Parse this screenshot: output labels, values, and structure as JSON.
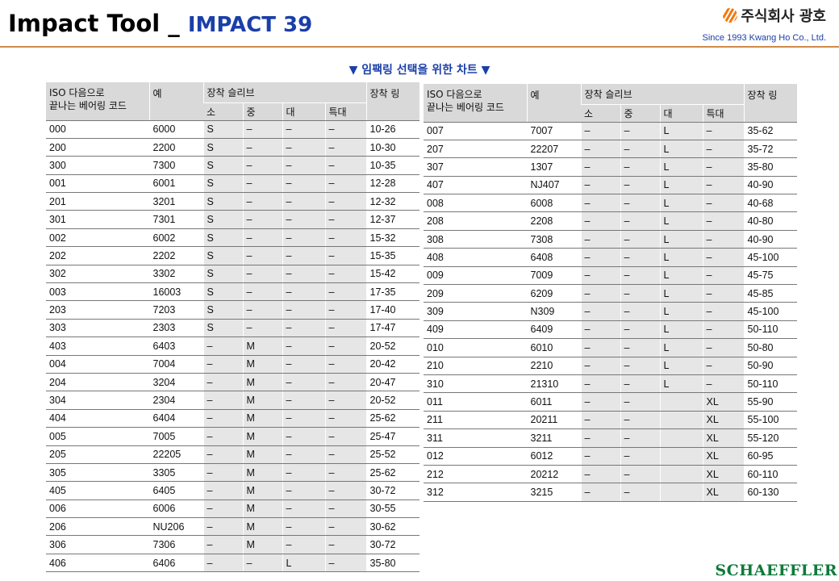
{
  "header": {
    "title": "Impact Tool _",
    "subtitle": "IMPACT 39"
  },
  "brand": {
    "company": "주식회사 광호",
    "since": "Since 1993 Kwang Ho Co., Ltd.",
    "logo_icon": "orange-striped-circle-logo"
  },
  "caption": "▼ 임팩링 선택을 위한 차트 ▼",
  "table_headers": {
    "iso": [
      "ISO 다음으로",
      "끝나는 베어링 코드"
    ],
    "example": "예",
    "sleeve": "장착 슬리브",
    "small": "소",
    "medium": "중",
    "large": "대",
    "xlarge": "특대",
    "ring": "장착 링"
  },
  "left_table": [
    {
      "iso": "000",
      "ex": "6000",
      "s": "S",
      "m": "–",
      "l": "–",
      "xl": "–",
      "ring": "10-26"
    },
    {
      "iso": "200",
      "ex": "2200",
      "s": "S",
      "m": "–",
      "l": "–",
      "xl": "–",
      "ring": "10-30"
    },
    {
      "iso": "300",
      "ex": "7300",
      "s": "S",
      "m": "–",
      "l": "–",
      "xl": "–",
      "ring": "10-35"
    },
    {
      "iso": "001",
      "ex": "6001",
      "s": "S",
      "m": "–",
      "l": "–",
      "xl": "–",
      "ring": "12-28"
    },
    {
      "iso": "201",
      "ex": "3201",
      "s": "S",
      "m": "–",
      "l": "–",
      "xl": "–",
      "ring": "12-32"
    },
    {
      "iso": "301",
      "ex": "7301",
      "s": "S",
      "m": "–",
      "l": "–",
      "xl": "–",
      "ring": "12-37"
    },
    {
      "iso": "002",
      "ex": "6002",
      "s": "S",
      "m": "–",
      "l": "–",
      "xl": "–",
      "ring": "15-32"
    },
    {
      "iso": "202",
      "ex": "2202",
      "s": "S",
      "m": "–",
      "l": "–",
      "xl": "–",
      "ring": "15-35"
    },
    {
      "iso": "302",
      "ex": "3302",
      "s": "S",
      "m": "–",
      "l": "–",
      "xl": "–",
      "ring": "15-42"
    },
    {
      "iso": "003",
      "ex": "16003",
      "s": "S",
      "m": "–",
      "l": "–",
      "xl": "–",
      "ring": "17-35"
    },
    {
      "iso": "203",
      "ex": "7203",
      "s": "S",
      "m": "–",
      "l": "–",
      "xl": "–",
      "ring": "17-40"
    },
    {
      "iso": "303",
      "ex": "2303",
      "s": "S",
      "m": "–",
      "l": "–",
      "xl": "–",
      "ring": "17-47"
    },
    {
      "iso": "403",
      "ex": "6403",
      "s": "–",
      "m": "M",
      "l": "–",
      "xl": "–",
      "ring": "20-52"
    },
    {
      "iso": "004",
      "ex": "7004",
      "s": "–",
      "m": "M",
      "l": "–",
      "xl": "–",
      "ring": "20-42"
    },
    {
      "iso": "204",
      "ex": "3204",
      "s": "–",
      "m": "M",
      "l": "–",
      "xl": "–",
      "ring": "20-47"
    },
    {
      "iso": "304",
      "ex": "2304",
      "s": "–",
      "m": "M",
      "l": "–",
      "xl": "–",
      "ring": "20-52"
    },
    {
      "iso": "404",
      "ex": "6404",
      "s": "–",
      "m": "M",
      "l": "–",
      "xl": "–",
      "ring": "25-62"
    },
    {
      "iso": "005",
      "ex": "7005",
      "s": "–",
      "m": "M",
      "l": "–",
      "xl": "–",
      "ring": "25-47"
    },
    {
      "iso": "205",
      "ex": "22205",
      "s": "–",
      "m": "M",
      "l": "–",
      "xl": "–",
      "ring": "25-52"
    },
    {
      "iso": "305",
      "ex": "3305",
      "s": "–",
      "m": "M",
      "l": "–",
      "xl": "–",
      "ring": "25-62"
    },
    {
      "iso": "405",
      "ex": "6405",
      "s": "–",
      "m": "M",
      "l": "–",
      "xl": "–",
      "ring": "30-72"
    },
    {
      "iso": "006",
      "ex": "6006",
      "s": "–",
      "m": "M",
      "l": "–",
      "xl": "–",
      "ring": "30-55"
    },
    {
      "iso": "206",
      "ex": "NU206",
      "s": "–",
      "m": "M",
      "l": "–",
      "xl": "–",
      "ring": "30-62"
    },
    {
      "iso": "306",
      "ex": "7306",
      "s": "–",
      "m": "M",
      "l": "–",
      "xl": "–",
      "ring": "30-72"
    },
    {
      "iso": "406",
      "ex": "6406",
      "s": "–",
      "m": "–",
      "l": "L",
      "xl": "–",
      "ring": "35-80"
    }
  ],
  "right_table": [
    {
      "iso": "007",
      "ex": "7007",
      "s": "–",
      "m": "–",
      "l": "L",
      "xl": "–",
      "ring": "35-62"
    },
    {
      "iso": "207",
      "ex": "22207",
      "s": "–",
      "m": "–",
      "l": "L",
      "xl": "–",
      "ring": "35-72"
    },
    {
      "iso": "307",
      "ex": "1307",
      "s": "–",
      "m": "–",
      "l": "L",
      "xl": "–",
      "ring": "35-80"
    },
    {
      "iso": "407",
      "ex": "NJ407",
      "s": "–",
      "m": "–",
      "l": "L",
      "xl": "–",
      "ring": "40-90"
    },
    {
      "iso": "008",
      "ex": "6008",
      "s": "–",
      "m": "–",
      "l": "L",
      "xl": "–",
      "ring": "40-68"
    },
    {
      "iso": "208",
      "ex": "2208",
      "s": "–",
      "m": "–",
      "l": "L",
      "xl": "–",
      "ring": "40-80"
    },
    {
      "iso": "308",
      "ex": "7308",
      "s": "–",
      "m": "–",
      "l": "L",
      "xl": "–",
      "ring": "40-90"
    },
    {
      "iso": "408",
      "ex": "6408",
      "s": "–",
      "m": "–",
      "l": "L",
      "xl": "–",
      "ring": "45-100"
    },
    {
      "iso": "009",
      "ex": "7009",
      "s": "–",
      "m": "–",
      "l": "L",
      "xl": "–",
      "ring": "45-75"
    },
    {
      "iso": "209",
      "ex": "6209",
      "s": "–",
      "m": "–",
      "l": "L",
      "xl": "–",
      "ring": "45-85"
    },
    {
      "iso": "309",
      "ex": "N309",
      "s": "–",
      "m": "–",
      "l": "L",
      "xl": "–",
      "ring": "45-100"
    },
    {
      "iso": "409",
      "ex": "6409",
      "s": "–",
      "m": "–",
      "l": "L",
      "xl": "–",
      "ring": "50-110"
    },
    {
      "iso": "010",
      "ex": "6010",
      "s": "–",
      "m": "–",
      "l": "L",
      "xl": "–",
      "ring": "50-80"
    },
    {
      "iso": "210",
      "ex": "2210",
      "s": "–",
      "m": "–",
      "l": "L",
      "xl": "–",
      "ring": "50-90"
    },
    {
      "iso": "310",
      "ex": "21310",
      "s": "–",
      "m": "–",
      "l": "L",
      "xl": "–",
      "ring": "50-110"
    },
    {
      "iso": "011",
      "ex": "6011",
      "s": "–",
      "m": "–",
      "l": "",
      "xl": "XL",
      "ring": "55-90"
    },
    {
      "iso": "211",
      "ex": "20211",
      "s": "–",
      "m": "–",
      "l": "",
      "xl": "XL",
      "ring": "55-100"
    },
    {
      "iso": "311",
      "ex": "3211",
      "s": "–",
      "m": "–",
      "l": "",
      "xl": "XL",
      "ring": "55-120"
    },
    {
      "iso": "012",
      "ex": "6012",
      "s": "–",
      "m": "–",
      "l": "",
      "xl": "XL",
      "ring": "60-95"
    },
    {
      "iso": "212",
      "ex": "20212",
      "s": "–",
      "m": "–",
      "l": "",
      "xl": "XL",
      "ring": "60-110"
    },
    {
      "iso": "312",
      "ex": "3215",
      "s": "–",
      "m": "–",
      "l": "",
      "xl": "XL",
      "ring": "60-130"
    }
  ],
  "footer_brand": "SCHAEFFLER",
  "colors": {
    "title": "#000000",
    "subtitle": "#1a3fa8",
    "rule": "#d08a4a",
    "header_fill": "#d9d9d9",
    "shaded_row": "#e6e6e6",
    "footer_brand": "#0d7a3a"
  }
}
